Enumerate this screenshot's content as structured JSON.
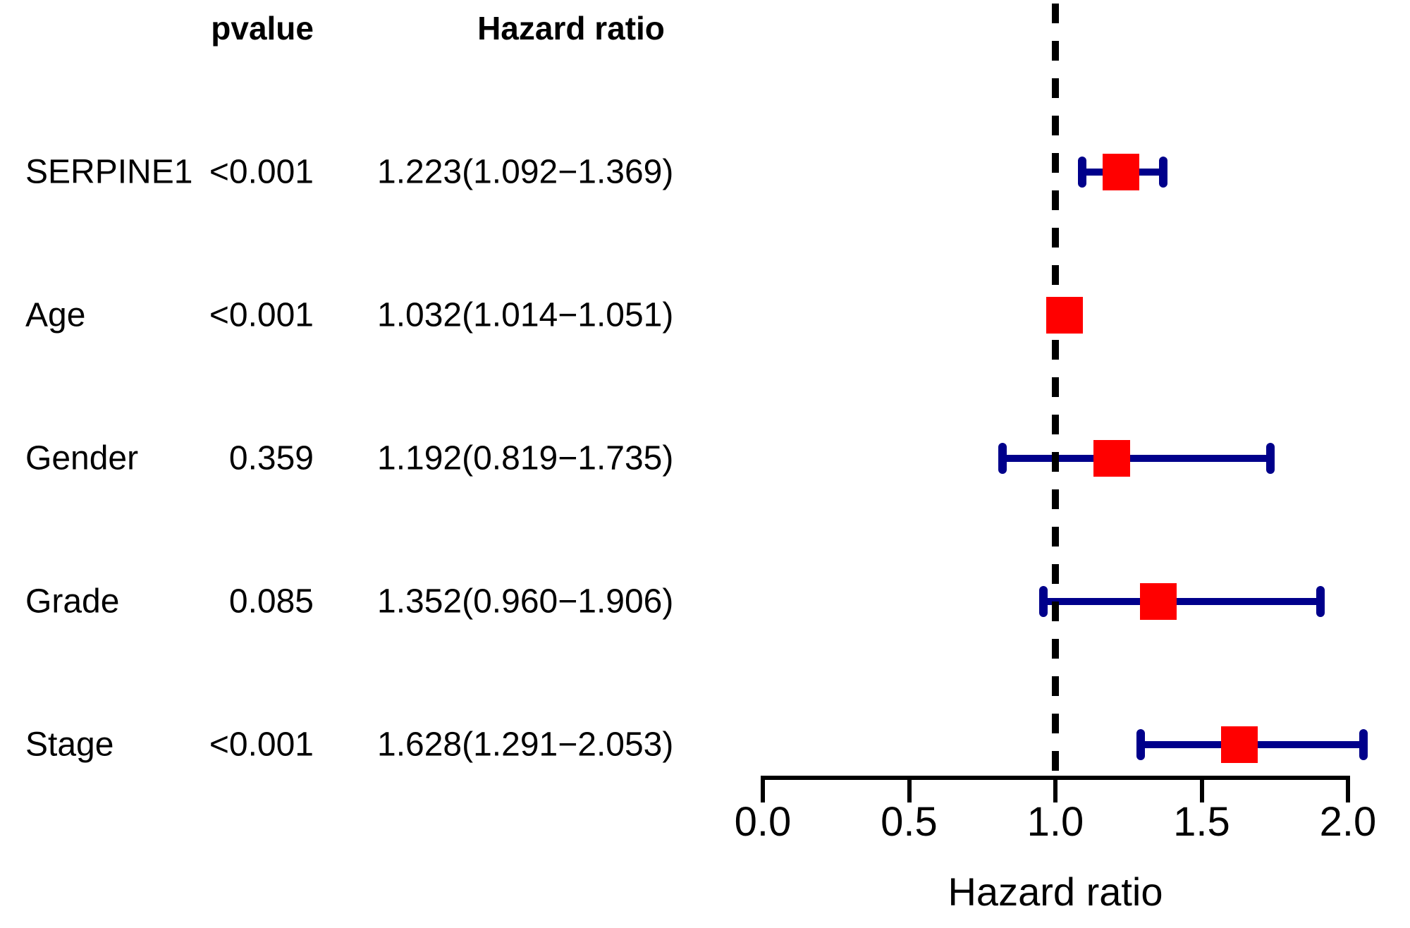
{
  "headers": {
    "pvalue": "pvalue",
    "hazard_ratio": "Hazard ratio"
  },
  "axis": {
    "label": "Hazard ratio",
    "tick_labels": [
      "0.0",
      "0.5",
      "1.0",
      "1.5",
      "2.0"
    ],
    "tick_values": [
      0.0,
      0.5,
      1.0,
      1.5,
      2.0
    ],
    "min": 0.0,
    "max": 2.0,
    "reference_line": 1.0
  },
  "rows": [
    {
      "name": "SERPINE1",
      "pvalue": "<0.001",
      "hr_text": "1.223(1.092−1.369)",
      "hr": 1.223,
      "low": 1.092,
      "high": 1.369
    },
    {
      "name": "Age",
      "pvalue": "<0.001",
      "hr_text": "1.032(1.014−1.051)",
      "hr": 1.032,
      "low": 1.014,
      "high": 1.051
    },
    {
      "name": "Gender",
      "pvalue": "0.359",
      "hr_text": "1.192(0.819−1.735)",
      "hr": 1.192,
      "low": 0.819,
      "high": 1.735
    },
    {
      "name": "Grade",
      "pvalue": "0.085",
      "hr_text": "1.352(0.960−1.906)",
      "hr": 1.352,
      "low": 0.96,
      "high": 1.906
    },
    {
      "name": "Stage",
      "pvalue": "<0.001",
      "hr_text": "1.628(1.291−2.053)",
      "hr": 1.628,
      "low": 1.291,
      "high": 2.053
    }
  ],
  "colors": {
    "point_square": "#FF0000",
    "ci_bar": "#00008B",
    "reference_line": "#000000",
    "axis": "#000000",
    "text": "#000000"
  },
  "chart_data": {
    "type": "scatter",
    "subtype": "forest-plot",
    "title": "",
    "xlabel": "Hazard ratio",
    "ylabel": "",
    "xlim": [
      0.0,
      2.0
    ],
    "xticks": [
      0.0,
      0.5,
      1.0,
      1.5,
      2.0
    ],
    "reference_line_x": 1.0,
    "grid": false,
    "legend": null,
    "categories": [
      "SERPINE1",
      "Age",
      "Gender",
      "Grade",
      "Stage"
    ],
    "series": [
      {
        "name": "pvalue",
        "values": [
          "<0.001",
          "<0.001",
          "0.359",
          "0.085",
          "<0.001"
        ]
      },
      {
        "name": "hazard_ratio",
        "values": [
          1.223,
          1.032,
          1.192,
          1.352,
          1.628
        ]
      },
      {
        "name": "ci_lower",
        "values": [
          1.092,
          1.014,
          0.819,
          0.96,
          1.291
        ]
      },
      {
        "name": "ci_upper",
        "values": [
          1.369,
          1.051,
          1.735,
          1.906,
          2.053
        ]
      }
    ]
  }
}
